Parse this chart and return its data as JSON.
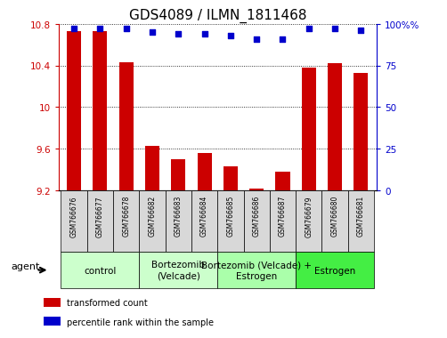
{
  "title": "GDS4089 / ILMN_1811468",
  "samples": [
    "GSM766676",
    "GSM766677",
    "GSM766678",
    "GSM766682",
    "GSM766683",
    "GSM766684",
    "GSM766685",
    "GSM766686",
    "GSM766687",
    "GSM766679",
    "GSM766680",
    "GSM766681"
  ],
  "transformed_count": [
    10.73,
    10.73,
    10.43,
    9.63,
    9.5,
    9.56,
    9.43,
    9.22,
    9.38,
    10.38,
    10.42,
    10.33
  ],
  "percentile_rank": [
    97,
    97,
    97,
    95,
    94,
    94,
    93,
    91,
    91,
    97,
    97,
    96
  ],
  "ylim_left": [
    9.2,
    10.8
  ],
  "ylim_right": [
    0,
    100
  ],
  "yticks_left": [
    9.2,
    9.6,
    10.0,
    10.4,
    10.8
  ],
  "yticks_right": [
    0,
    25,
    50,
    75,
    100
  ],
  "groups": [
    {
      "label": "control",
      "start": 0,
      "end": 3,
      "color": "#ccffcc"
    },
    {
      "label": "Bortezomib\n(Velcade)",
      "start": 3,
      "end": 6,
      "color": "#ccffcc"
    },
    {
      "label": "Bortezomib (Velcade) +\nEstrogen",
      "start": 6,
      "end": 9,
      "color": "#aaffaa"
    },
    {
      "label": "Estrogen",
      "start": 9,
      "end": 12,
      "color": "#44ee44"
    }
  ],
  "bar_color": "#cc0000",
  "dot_color": "#0000cc",
  "bar_width": 0.55,
  "legend_bar_label": "transformed count",
  "legend_dot_label": "percentile rank within the sample",
  "agent_label": "agent",
  "title_fontsize": 11,
  "tick_fontsize": 7.5,
  "sample_fontsize": 5.5,
  "group_fontsize": 7.5
}
